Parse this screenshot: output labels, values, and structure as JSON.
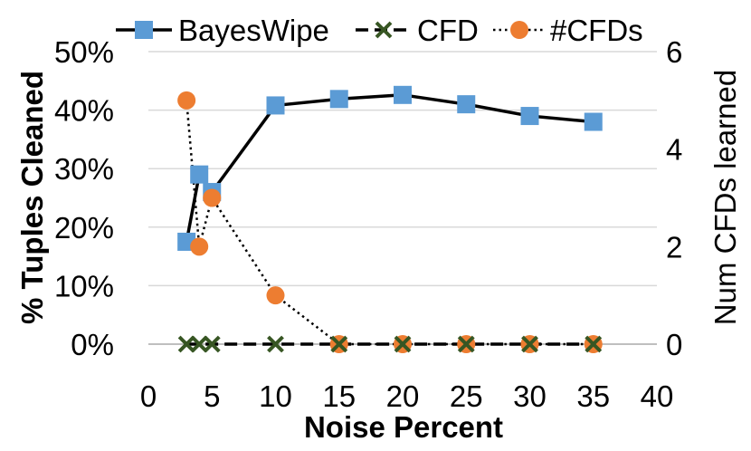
{
  "chart_data": {
    "type": "line",
    "xlabel": "Noise Percent",
    "ylabel": "% Tuples Cleaned",
    "ylabel_right": "Num CFDs learned",
    "xlim": [
      0,
      40
    ],
    "ylim": [
      0,
      50
    ],
    "ylim_right": [
      0,
      6
    ],
    "x_ticks": [
      0,
      5,
      10,
      15,
      20,
      25,
      30,
      35,
      40
    ],
    "x_tick_labels": [
      "0",
      "5",
      "10",
      "15",
      "20",
      "25",
      "30",
      "35",
      "40"
    ],
    "y_ticks": [
      0,
      10,
      20,
      30,
      40,
      50
    ],
    "y_tick_labels": [
      "0%",
      "10%",
      "20%",
      "30%",
      "40%",
      "50%"
    ],
    "y_right_ticks": [
      0,
      2,
      4,
      6
    ],
    "y_right_tick_labels": [
      "0",
      "2",
      "4",
      "6"
    ],
    "legend_position": "top",
    "series": [
      {
        "name": "BayesWipe",
        "axis": "left",
        "marker": "square",
        "line": "solid",
        "color": "#5b9bd5",
        "x": [
          3,
          4,
          5,
          10,
          15,
          20,
          25,
          30,
          35
        ],
        "values": [
          17.5,
          29,
          26,
          40.8,
          41.9,
          42.6,
          41,
          39,
          38
        ]
      },
      {
        "name": "CFD",
        "axis": "left",
        "marker": "x",
        "line": "dashed",
        "color": "#375623",
        "x": [
          3,
          4,
          5,
          10,
          15,
          20,
          25,
          30,
          35
        ],
        "values": [
          0,
          0,
          0,
          0,
          0,
          0,
          0,
          0,
          0
        ]
      },
      {
        "name": "#CFDs",
        "axis": "right",
        "marker": "circle",
        "line": "dotted",
        "color": "#ed7d31",
        "x": [
          3,
          4,
          5,
          10,
          15,
          20,
          25,
          30,
          35
        ],
        "values": [
          5,
          2,
          3,
          1,
          0,
          0,
          0,
          0,
          0
        ]
      }
    ]
  }
}
